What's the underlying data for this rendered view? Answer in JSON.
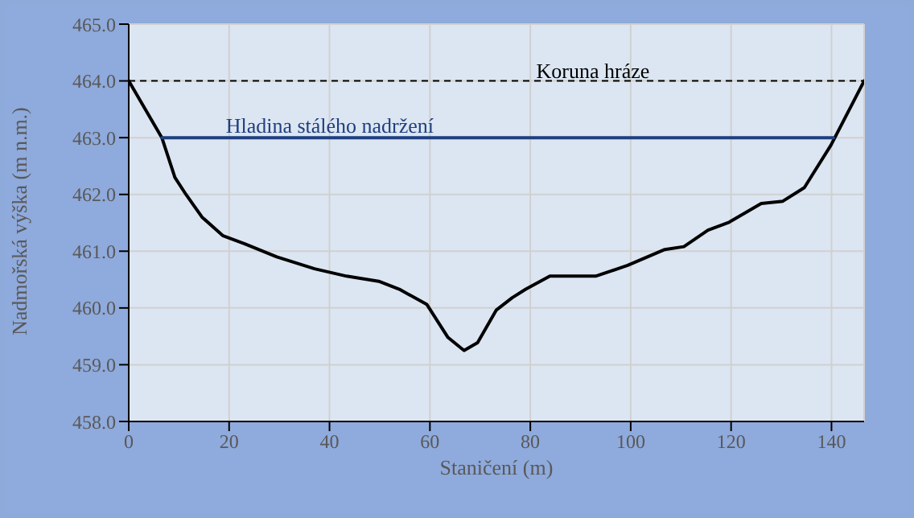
{
  "chart_data": {
    "type": "line",
    "xlabel": "Staničení (m)",
    "ylabel": "Nadmořská výška (m n.m.)",
    "xlim": [
      0,
      146.5
    ],
    "xticks": [
      0,
      20,
      40,
      60,
      80,
      100,
      120,
      140
    ],
    "ylim": [
      458,
      465
    ],
    "yticks": [
      {
        "value": 458,
        "label": "458.0"
      },
      {
        "value": 459,
        "label": "459.0"
      },
      {
        "value": 460,
        "label": "460.0"
      },
      {
        "value": 461,
        "label": "461.0"
      },
      {
        "value": 462,
        "label": "462.0"
      },
      {
        "value": 463,
        "label": "463.0"
      },
      {
        "value": 464,
        "label": "464.0"
      },
      {
        "value": 465,
        "label": "465.0"
      }
    ],
    "grid": true,
    "legend": false,
    "marker": "none",
    "line_style": "solid",
    "series": [
      {
        "color": "#000000",
        "x": [
          0,
          6.6,
          9.2,
          11.4,
          14.6,
          18.8,
          23.1,
          29.5,
          37,
          43.4,
          49.8,
          53.9,
          59.4,
          63.6,
          66.8,
          69.5,
          73.2,
          76.4,
          79.1,
          83.9,
          93,
          99.4,
          106.8,
          110.6,
          115.4,
          119.6,
          126,
          130.3,
          134.6,
          139.9,
          146.5
        ],
        "values": [
          464.0,
          463.0,
          462.3,
          462.0,
          461.6,
          461.27,
          461.13,
          460.9,
          460.69,
          460.56,
          460.47,
          460.33,
          460.06,
          459.48,
          459.25,
          459.39,
          459.96,
          460.18,
          460.33,
          460.56,
          460.56,
          460.75,
          461.03,
          461.08,
          461.37,
          461.51,
          461.84,
          461.88,
          462.12,
          462.87,
          464.0
        ]
      },
      {
        "name": "Hladina stálého nadržení",
        "color": "#1f3f7f",
        "x": [
          6.6,
          140.4
        ],
        "values": [
          463,
          463
        ]
      }
    ],
    "ref_lines": [
      {
        "axis": "y",
        "value": 464,
        "label": "Koruna hráze",
        "color": "#000000",
        "line_style": "dashed"
      }
    ]
  }
}
